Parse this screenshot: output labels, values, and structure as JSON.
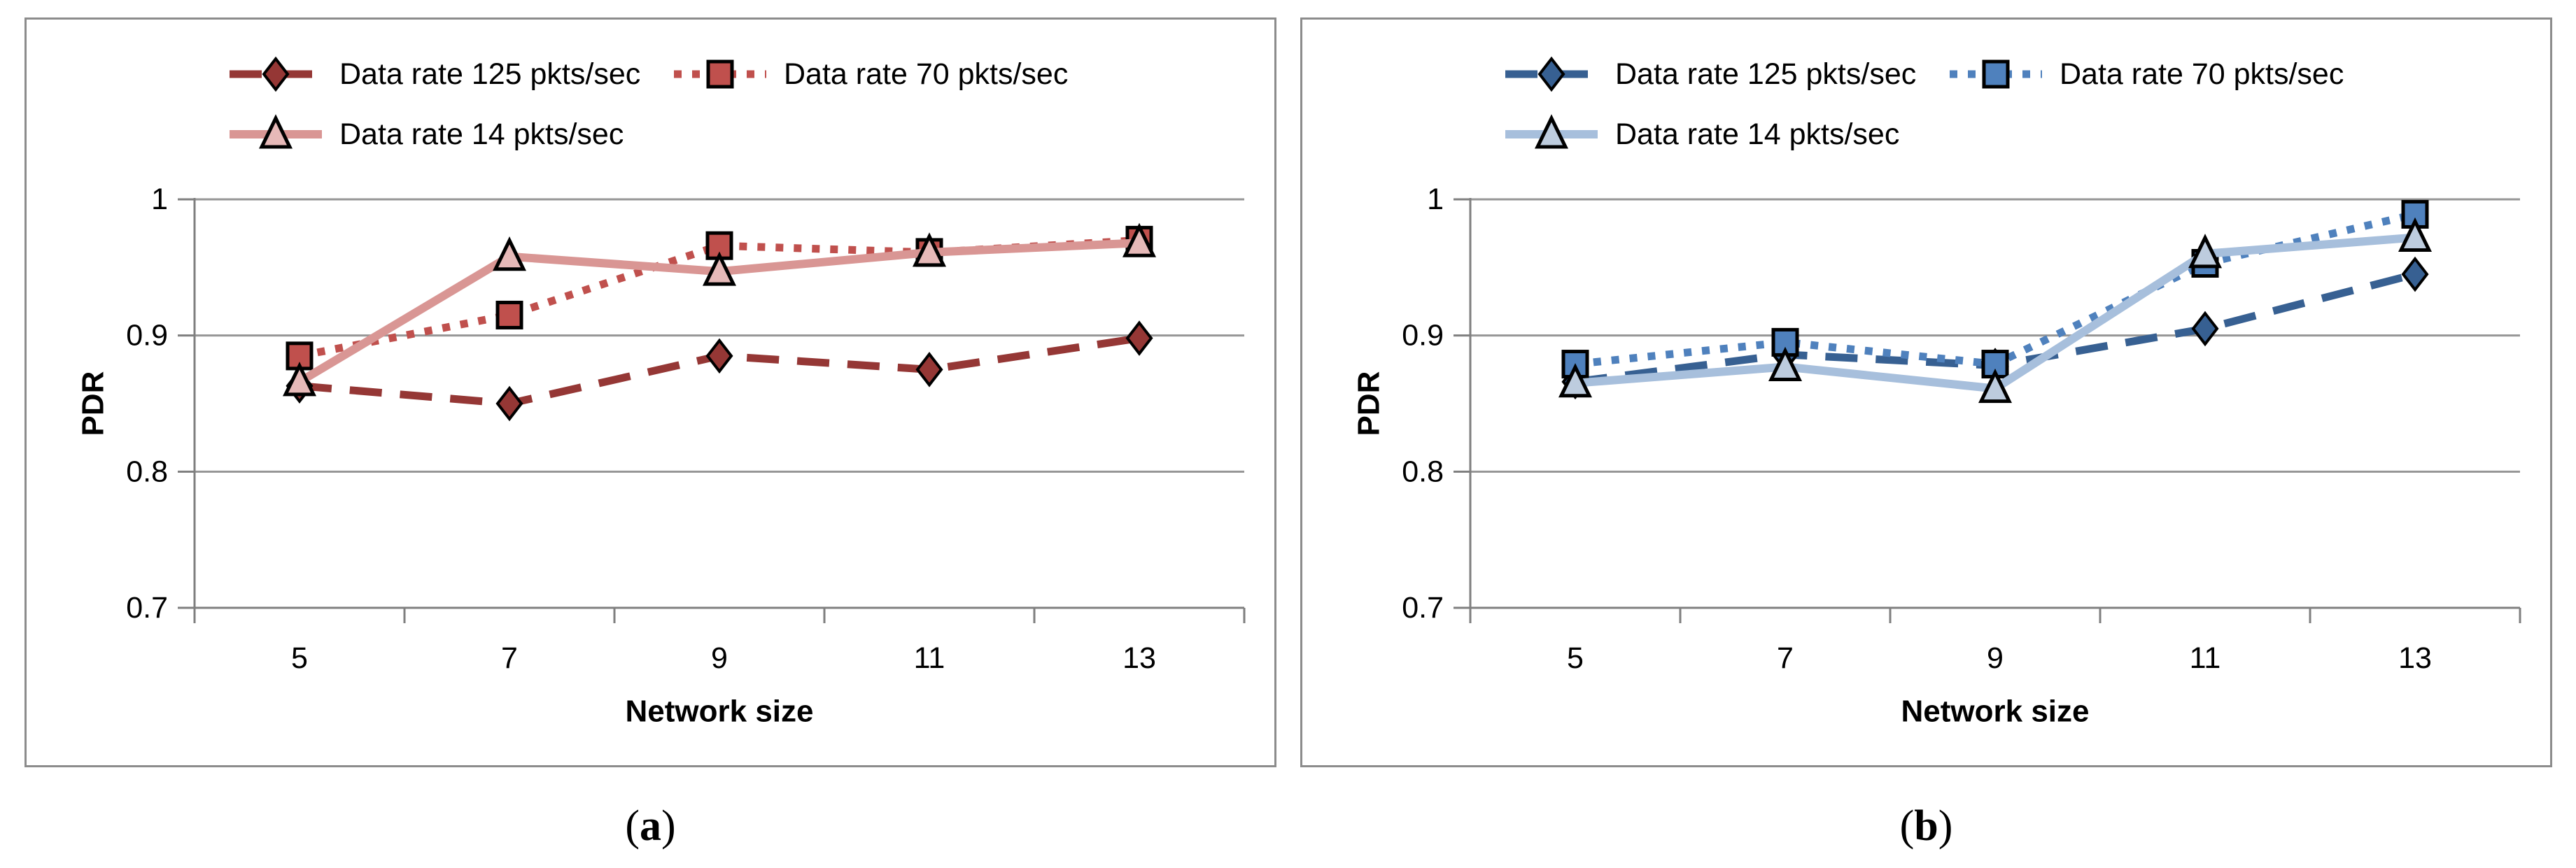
{
  "figure": {
    "background": "#ffffff",
    "panel_border_color": "#8c8c8c",
    "grid_color": "#969696",
    "axis_color": "#7f7f7f",
    "text_color": "#000000"
  },
  "captions": {
    "a": {
      "pre": "(",
      "label": "a",
      "post": ")"
    },
    "b": {
      "pre": "(",
      "label": "b",
      "post": ")"
    }
  },
  "chart_data": [
    {
      "id": "a",
      "type": "line",
      "title": "",
      "xlabel": "Network size",
      "ylabel": "PDR",
      "categories": [
        5,
        7,
        9,
        11,
        13
      ],
      "ylim": [
        0.7,
        1.0
      ],
      "yticks": [
        1,
        0.9,
        0.8,
        0.7
      ],
      "ytick_labels": [
        "1",
        "0.9",
        "0.8",
        "0.7"
      ],
      "grid": true,
      "legend_position": "top-left-two-rows",
      "series": [
        {
          "name": "Data rate 125 pkts/sec",
          "marker": "diamond",
          "dash": "dashed",
          "line_color": "#953735",
          "marker_fill": "#953735",
          "marker_edge": "#000000",
          "values": [
            0.863,
            0.85,
            0.885,
            0.875,
            0.898
          ]
        },
        {
          "name": "Data rate 70 pkts/sec",
          "marker": "square",
          "dash": "dotted",
          "line_color": "#c0504d",
          "marker_fill": "#c0504d",
          "marker_edge": "#000000",
          "values": [
            0.885,
            0.915,
            0.966,
            0.961,
            0.97
          ]
        },
        {
          "name": "Data rate 14 pkts/sec",
          "marker": "triangle",
          "dash": "solid",
          "line_color": "#d99694",
          "marker_fill": "#e6b9b8",
          "marker_edge": "#000000",
          "values": [
            0.866,
            0.958,
            0.947,
            0.961,
            0.968
          ]
        }
      ]
    },
    {
      "id": "b",
      "type": "line",
      "title": "",
      "xlabel": "Network size",
      "ylabel": "PDR",
      "categories": [
        5,
        7,
        9,
        11,
        13
      ],
      "ylim": [
        0.7,
        1.0
      ],
      "yticks": [
        1,
        0.9,
        0.8,
        0.7
      ],
      "ytick_labels": [
        "1",
        "0.9",
        "0.8",
        "0.7"
      ],
      "grid": true,
      "legend_position": "top-left-two-rows",
      "series": [
        {
          "name": "Data rate 125 pkts/sec",
          "marker": "diamond",
          "dash": "dashed",
          "line_color": "#376092",
          "marker_fill": "#376092",
          "marker_edge": "#000000",
          "values": [
            0.866,
            0.886,
            0.878,
            0.905,
            0.945
          ]
        },
        {
          "name": "Data rate 70 pkts/sec",
          "marker": "square",
          "dash": "dotted",
          "line_color": "#4f81bd",
          "marker_fill": "#4f81bd",
          "marker_edge": "#000000",
          "values": [
            0.879,
            0.895,
            0.879,
            0.953,
            0.989
          ]
        },
        {
          "name": "Data rate 14 pkts/sec",
          "marker": "triangle",
          "dash": "solid",
          "line_color": "#a7bfdc",
          "marker_fill": "#bdccde",
          "marker_edge": "#000000",
          "values": [
            0.865,
            0.877,
            0.861,
            0.96,
            0.972
          ]
        }
      ]
    }
  ]
}
